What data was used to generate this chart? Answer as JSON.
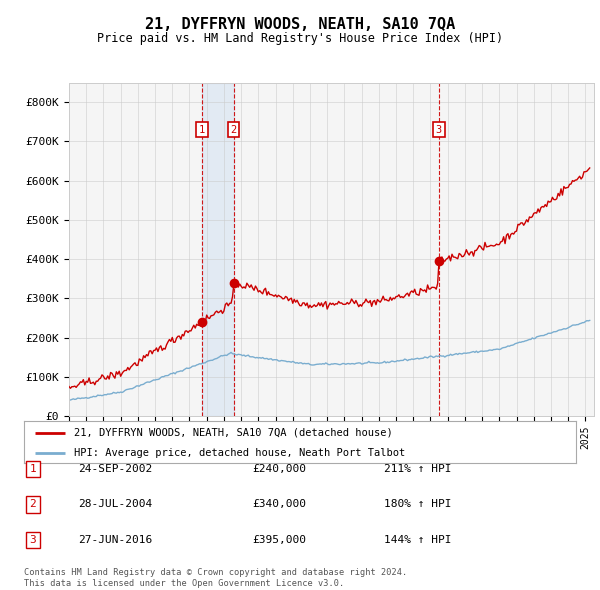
{
  "title": "21, DYFFRYN WOODS, NEATH, SA10 7QA",
  "subtitle": "Price paid vs. HM Land Registry's House Price Index (HPI)",
  "ylabel_ticks": [
    "£0",
    "£100K",
    "£200K",
    "£300K",
    "£400K",
    "£500K",
    "£600K",
    "£700K",
    "£800K"
  ],
  "ytick_values": [
    0,
    100000,
    200000,
    300000,
    400000,
    500000,
    600000,
    700000,
    800000
  ],
  "ylim": [
    0,
    850000
  ],
  "xlim_start": 1995.0,
  "xlim_end": 2025.5,
  "transactions": [
    {
      "label": "1",
      "date": "24-SEP-2002",
      "price": 240000,
      "year": 2002.73,
      "hpi_pct": "211%"
    },
    {
      "label": "2",
      "date": "28-JUL-2004",
      "price": 340000,
      "year": 2004.57,
      "hpi_pct": "180%"
    },
    {
      "label": "3",
      "date": "27-JUN-2016",
      "price": 395000,
      "year": 2016.49,
      "hpi_pct": "144%"
    }
  ],
  "legend_line1": "21, DYFFRYN WOODS, NEATH, SA10 7QA (detached house)",
  "legend_line2": "HPI: Average price, detached house, Neath Port Talbot",
  "footnote1": "Contains HM Land Registry data © Crown copyright and database right 2024.",
  "footnote2": "This data is licensed under the Open Government Licence v3.0.",
  "red_color": "#cc0000",
  "blue_color": "#7aadcf",
  "background_color": "#ffffff",
  "plot_bg_color": "#f5f5f5",
  "grid_color": "#cccccc",
  "label_box_color": "#cc0000",
  "dashed_line_color": "#cc0000",
  "shaded_region_color": "#ddeeff",
  "hpi_seed": 42,
  "hpi_noise_scale": 1500,
  "red_noise_scale": 5000
}
